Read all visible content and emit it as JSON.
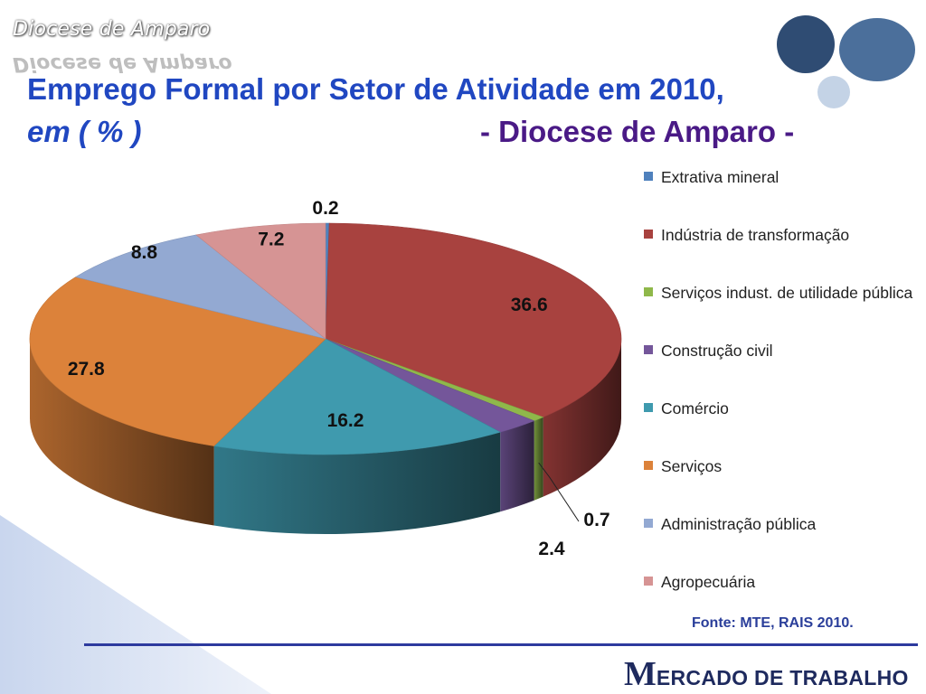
{
  "header": {
    "watermark": "Diocese de Amparo",
    "title_line1": "Emprego Formal por Setor de Atividade em 2010,",
    "title_line2": "em ( % )",
    "title_line3": "- Diocese de Amparo -"
  },
  "chart_data": {
    "type": "pie",
    "style": "3d-exploded-none",
    "categories": [
      "Extrativa mineral",
      "Indústria de transformação",
      "Serviços indust. de utilidade pública",
      "Construção civil",
      "Comércio",
      "Serviços",
      "Administração pública",
      "Agropecuária"
    ],
    "values": [
      0.2,
      36.6,
      0.7,
      2.4,
      16.2,
      27.8,
      8.8,
      7.2
    ],
    "colors": [
      "#4f81bd",
      "#a8423f",
      "#8fb84a",
      "#74569a",
      "#3f9aae",
      "#dc823a",
      "#93a9d2",
      "#d69494"
    ],
    "data_labels": [
      "0.2",
      "36.6",
      "0.7",
      "2.4",
      "16.2",
      "27.8",
      "8.8",
      "7.2"
    ],
    "legend_position": "right",
    "legend": [
      {
        "label": "Extrativa mineral",
        "color": "#4f81bd"
      },
      {
        "label": "Indústria de transformação",
        "color": "#a8423f"
      },
      {
        "label": "Serviços indust. de utilidade pública",
        "color": "#8fb84a"
      },
      {
        "label": "Construção civil",
        "color": "#74569a"
      },
      {
        "label": "Comércio",
        "color": "#3f9aae"
      },
      {
        "label": "Serviços",
        "color": "#dc823a"
      },
      {
        "label": "Administração pública",
        "color": "#93a9d2"
      },
      {
        "label": "Agropecuária",
        "color": "#d69494"
      }
    ]
  },
  "source": "Fonte: MTE, RAIS 2010.",
  "footer": {
    "logo_initial": "M",
    "logo_rest": "ERCADO DE TRABALHO"
  },
  "colors": {
    "title": "#2047c1",
    "title_accent": "#4a1a86",
    "footer_rule": "#2d3a9e"
  }
}
